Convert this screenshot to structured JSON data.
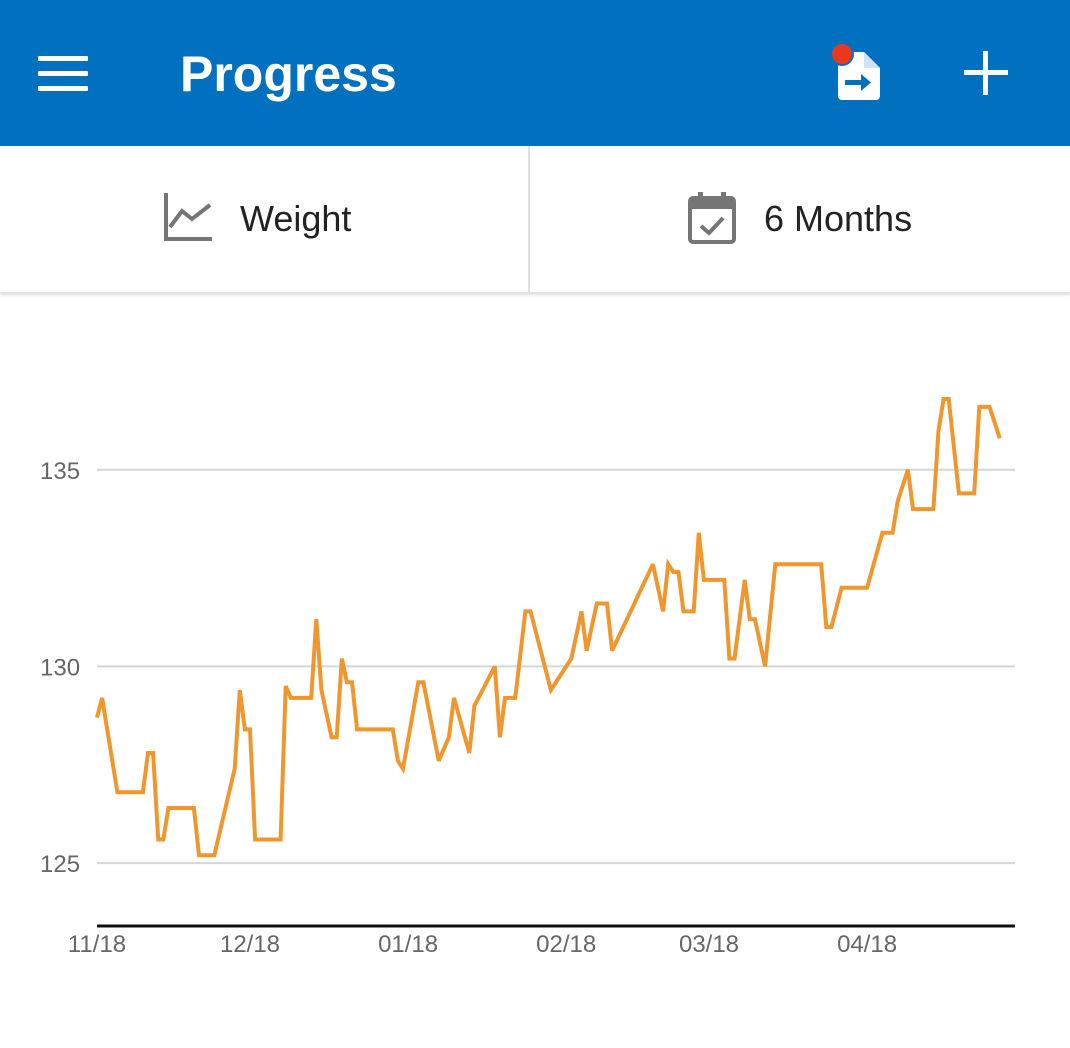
{
  "header": {
    "title": "Progress",
    "bg_color": "#0070bf",
    "icons": [
      "menu-icon",
      "export-report-icon",
      "add-icon"
    ],
    "notification_dot_color": "#e8381d"
  },
  "selectors": {
    "metric": {
      "icon": "line-chart-icon",
      "label": "Weight"
    },
    "range": {
      "icon": "calendar-check-icon",
      "label": "6 Months"
    }
  },
  "chart_data": {
    "type": "line",
    "title": "",
    "xlabel": "",
    "ylabel": "",
    "grid": true,
    "line_color": "#f0962d",
    "ylim": [
      123.4,
      138.3
    ],
    "xlim": [
      "2017-11-01",
      "2018-04-30"
    ],
    "y_ticks": [
      {
        "value": 125,
        "label": "125"
      },
      {
        "value": 130,
        "label": "130"
      },
      {
        "value": 135,
        "label": "135"
      }
    ],
    "x_ticks": [
      {
        "date": "2017-11-01",
        "label": "11/18"
      },
      {
        "date": "2017-12-01",
        "label": "12/18"
      },
      {
        "date": "2018-01-01",
        "label": "01/18"
      },
      {
        "date": "2018-02-01",
        "label": "02/18"
      },
      {
        "date": "2018-03-01",
        "label": "03/18"
      },
      {
        "date": "2018-04-01",
        "label": "04/18"
      }
    ],
    "series": [
      {
        "points": [
          [
            "2017-11-01",
            128.7
          ],
          [
            "2017-11-02",
            129.2
          ],
          [
            "2017-11-05",
            126.8
          ],
          [
            "2017-11-10",
            126.8
          ],
          [
            "2017-11-11",
            127.8
          ],
          [
            "2017-11-12",
            127.8
          ],
          [
            "2017-11-13",
            125.6
          ],
          [
            "2017-11-14",
            125.6
          ],
          [
            "2017-11-15",
            126.4
          ],
          [
            "2017-11-20",
            126.4
          ],
          [
            "2017-11-21",
            125.2
          ],
          [
            "2017-11-24",
            125.2
          ],
          [
            "2017-11-28",
            127.4
          ],
          [
            "2017-11-29",
            129.4
          ],
          [
            "2017-11-30",
            128.4
          ],
          [
            "2017-12-01",
            128.4
          ],
          [
            "2017-12-02",
            125.6
          ],
          [
            "2017-12-07",
            125.6
          ],
          [
            "2017-12-08",
            129.5
          ],
          [
            "2017-12-09",
            129.2
          ],
          [
            "2017-12-13",
            129.2
          ],
          [
            "2017-12-14",
            131.2
          ],
          [
            "2017-12-15",
            129.4
          ],
          [
            "2017-12-17",
            128.2
          ],
          [
            "2017-12-18",
            128.2
          ],
          [
            "2017-12-19",
            130.2
          ],
          [
            "2017-12-20",
            129.6
          ],
          [
            "2017-12-21",
            129.6
          ],
          [
            "2017-12-22",
            128.4
          ],
          [
            "2017-12-29",
            128.4
          ],
          [
            "2017-12-30",
            127.6
          ],
          [
            "2017-12-31",
            127.4
          ],
          [
            "2018-01-03",
            129.6
          ],
          [
            "2018-01-04",
            129.6
          ],
          [
            "2018-01-07",
            127.6
          ],
          [
            "2018-01-09",
            128.2
          ],
          [
            "2018-01-10",
            129.2
          ],
          [
            "2018-01-13",
            127.8
          ],
          [
            "2018-01-14",
            129.0
          ],
          [
            "2018-01-18",
            130.0
          ],
          [
            "2018-01-19",
            128.2
          ],
          [
            "2018-01-20",
            129.2
          ],
          [
            "2018-01-22",
            129.2
          ],
          [
            "2018-01-24",
            131.4
          ],
          [
            "2018-01-25",
            131.4
          ],
          [
            "2018-01-29",
            129.4
          ],
          [
            "2018-02-02",
            130.2
          ],
          [
            "2018-02-04",
            131.4
          ],
          [
            "2018-02-05",
            130.4
          ],
          [
            "2018-02-07",
            131.6
          ],
          [
            "2018-02-09",
            131.6
          ],
          [
            "2018-02-10",
            130.4
          ],
          [
            "2018-02-18",
            132.6
          ],
          [
            "2018-02-20",
            131.4
          ],
          [
            "2018-02-21",
            132.6
          ],
          [
            "2018-02-22",
            132.4
          ],
          [
            "2018-02-23",
            132.4
          ],
          [
            "2018-02-24",
            131.4
          ],
          [
            "2018-02-26",
            131.4
          ],
          [
            "2018-02-27",
            133.4
          ],
          [
            "2018-02-28",
            132.2
          ],
          [
            "2018-03-04",
            132.2
          ],
          [
            "2018-03-05",
            130.2
          ],
          [
            "2018-03-06",
            130.2
          ],
          [
            "2018-03-08",
            132.2
          ],
          [
            "2018-03-09",
            131.2
          ],
          [
            "2018-03-10",
            131.2
          ],
          [
            "2018-03-12",
            130.0
          ],
          [
            "2018-03-14",
            132.6
          ],
          [
            "2018-03-23",
            132.6
          ],
          [
            "2018-03-24",
            131.0
          ],
          [
            "2018-03-25",
            131.0
          ],
          [
            "2018-03-27",
            132.0
          ],
          [
            "2018-03-30",
            132.0
          ],
          [
            "2018-04-01",
            132.0
          ],
          [
            "2018-04-04",
            133.4
          ],
          [
            "2018-04-06",
            133.4
          ],
          [
            "2018-04-07",
            134.2
          ],
          [
            "2018-04-09",
            135.0
          ],
          [
            "2018-04-10",
            134.0
          ],
          [
            "2018-04-14",
            134.0
          ],
          [
            "2018-04-15",
            136.0
          ],
          [
            "2018-04-16",
            136.8
          ],
          [
            "2018-04-17",
            136.8
          ],
          [
            "2018-04-19",
            134.4
          ],
          [
            "2018-04-22",
            134.4
          ],
          [
            "2018-04-23",
            136.6
          ],
          [
            "2018-04-25",
            136.6
          ],
          [
            "2018-04-27",
            135.8
          ]
        ]
      }
    ]
  }
}
